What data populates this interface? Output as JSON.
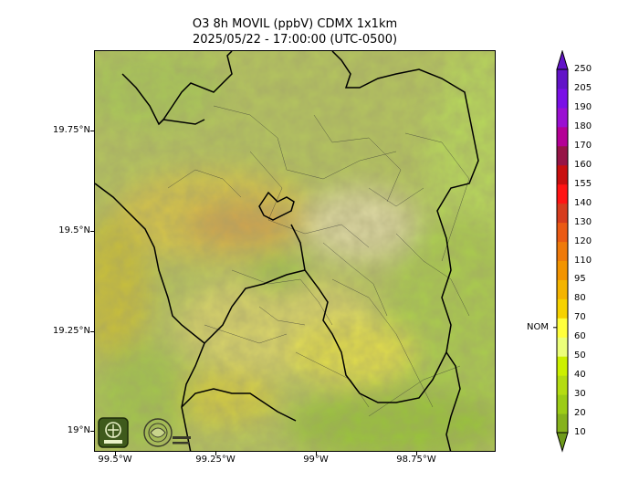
{
  "title": {
    "line1": "O3 8h MOVIL (ppbV) CDMX 1x1km",
    "line2": "2025/05/22 - 17:00:00 (UTC-0500)"
  },
  "axes": {
    "y_ticks": [
      "19.75°N",
      "19.5°N",
      "19.25°N",
      "19°N"
    ],
    "x_ticks": [
      "99.5°W",
      "99.25°W",
      "99°W",
      "98.75°W"
    ]
  },
  "colorbar": {
    "levels": [
      "10",
      "20",
      "30",
      "40",
      "50",
      "60",
      "70",
      "80",
      "95",
      "110",
      "120",
      "130",
      "140",
      "155",
      "160",
      "170",
      "180",
      "190",
      "205",
      "250"
    ],
    "colors": [
      "#6e9a1a",
      "#86b21c",
      "#9ccc16",
      "#b4dc12",
      "#ccf000",
      "#ecff7a",
      "#ffff3c",
      "#f6d200",
      "#f4b400",
      "#f29400",
      "#ef7a0a",
      "#ea5a14",
      "#d63c1e",
      "#ff1414",
      "#c80f0f",
      "#961446",
      "#b40096",
      "#9a10d2",
      "#7a10e6",
      "#6214c8"
    ],
    "nom_label": "NOM",
    "nom_value": 70
  },
  "logos": {
    "sedema": "sedema-logo",
    "calidad_aire": "calidad-del-aire-logo"
  },
  "map_colors": {
    "base": "#b9c763",
    "green": "#9ccc16",
    "light_green": "#d3e98a",
    "yellow": "#e6e33c",
    "khaki": "#cfc98b",
    "orange_tan": "#d3a85c",
    "boundary": "#000000"
  }
}
